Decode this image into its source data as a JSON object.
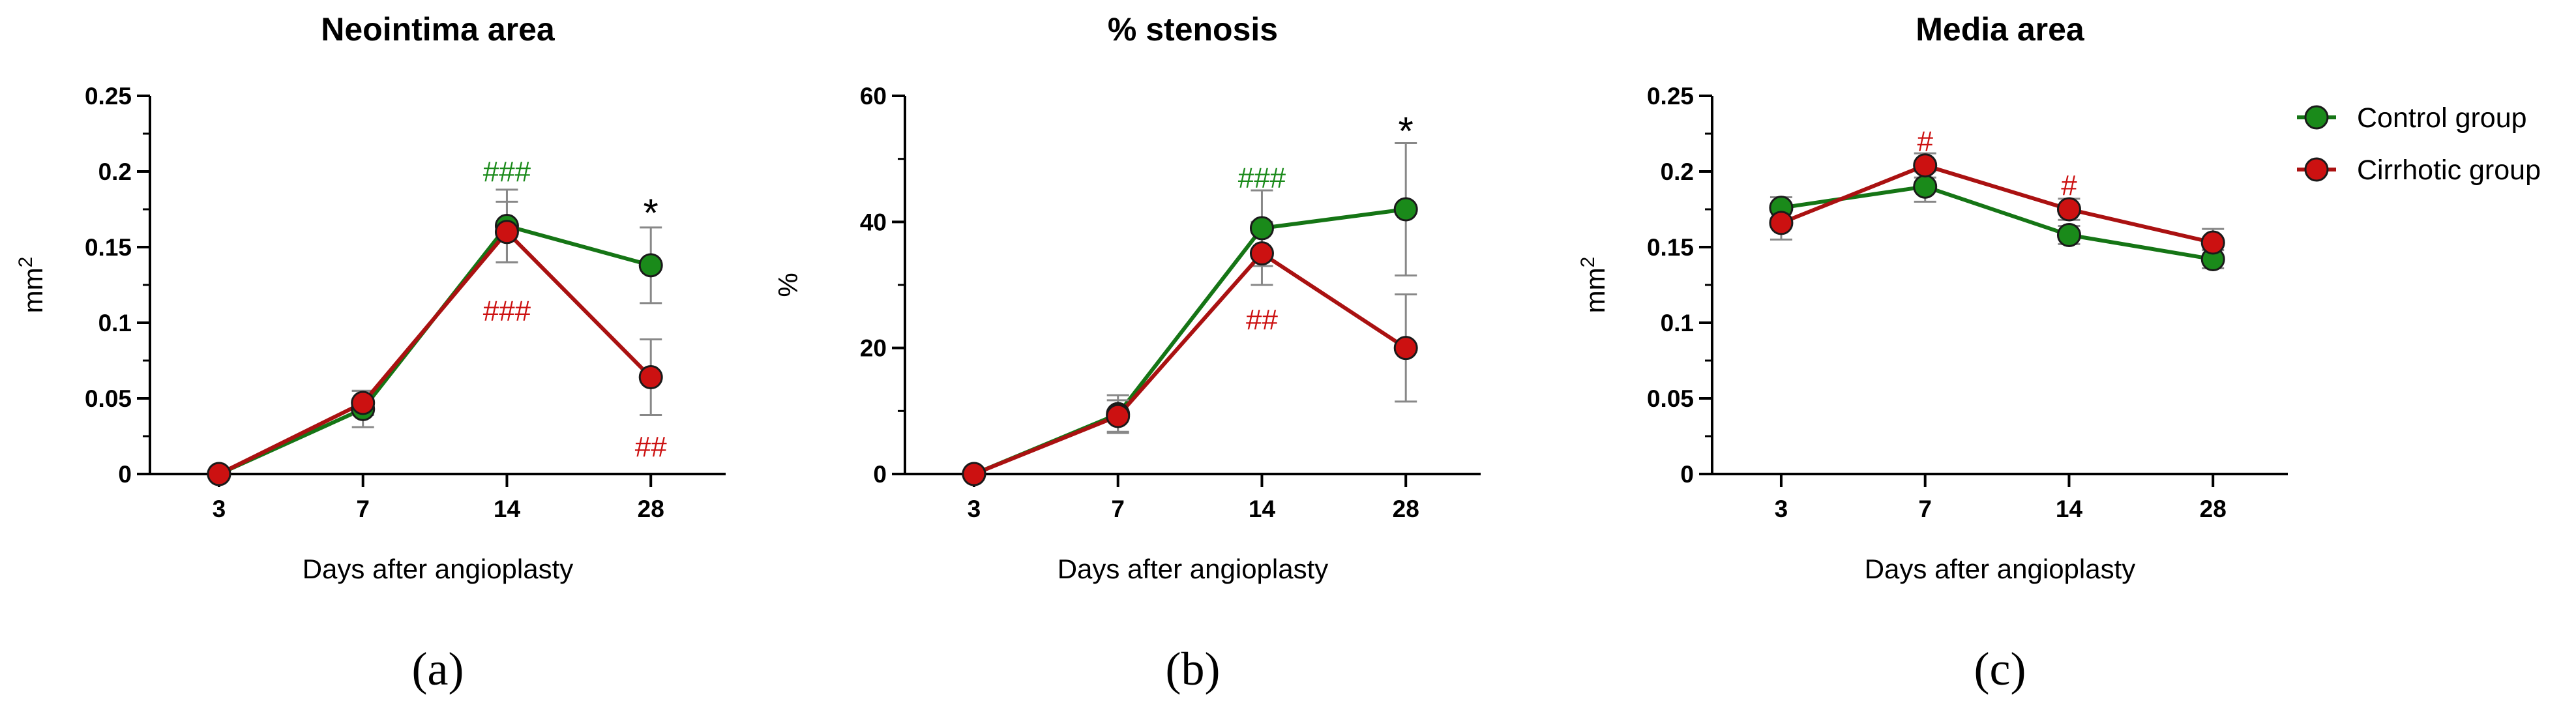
{
  "colors": {
    "control": "#1a8a1a",
    "cirrhotic": "#cc1111",
    "control_line": "#157515",
    "cirrhotic_line": "#aa1111",
    "errorbar": "#888888",
    "axis": "#000000"
  },
  "legend": {
    "placement": "top-right",
    "items": [
      {
        "label": "Control group",
        "color_key": "control"
      },
      {
        "label": "Cirrhotic group",
        "color_key": "cirrhotic"
      }
    ]
  },
  "chart_data": [
    {
      "type": "line",
      "title": "Neointima area",
      "xlabel": "Days after angioplasty",
      "ylabel_main": "mm",
      "ylabel_sup": "2",
      "panel_label": "(a)",
      "categories": [
        "3",
        "7",
        "14",
        "28"
      ],
      "ylim": [
        0,
        0.25
      ],
      "yticks": [
        0,
        0.05,
        0.1,
        0.15,
        0.2,
        0.25
      ],
      "ytick_labels": [
        "0",
        "0.05",
        "0.1",
        "0.15",
        "0.2",
        "0.25"
      ],
      "series": [
        {
          "name": "Control group",
          "color_key": "control",
          "values": [
            0,
            0.043,
            0.164,
            0.138
          ],
          "err": [
            0,
            0.012,
            0.024,
            0.025
          ]
        },
        {
          "name": "Cirrhotic group",
          "color_key": "cirrhotic",
          "values": [
            0,
            0.047,
            0.16,
            0.064
          ],
          "err": [
            0,
            0.008,
            0.02,
            0.025
          ]
        }
      ],
      "annotations": [
        {
          "text": "###",
          "category": "14",
          "y": 0.2,
          "color_key": "control"
        },
        {
          "text": "###",
          "category": "14",
          "y": 0.108,
          "color_key": "cirrhotic"
        },
        {
          "text": "*",
          "category": "28",
          "y": 0.175,
          "color_key": "axis"
        },
        {
          "text": "##",
          "category": "28",
          "y": 0.018,
          "color_key": "cirrhotic"
        }
      ]
    },
    {
      "type": "line",
      "title": "% stenosis",
      "xlabel": "Days after angioplasty",
      "ylabel_main": "%",
      "ylabel_sup": "",
      "panel_label": "(b)",
      "categories": [
        "3",
        "7",
        "14",
        "28"
      ],
      "ylim": [
        0,
        60
      ],
      "yticks": [
        0,
        20,
        40,
        60
      ],
      "ytick_labels": [
        "0",
        "20",
        "40",
        "60"
      ],
      "series": [
        {
          "name": "Control group",
          "color_key": "control",
          "values": [
            0,
            9.5,
            39,
            42
          ],
          "err": [
            0,
            3,
            6,
            10.5
          ]
        },
        {
          "name": "Cirrhotic group",
          "color_key": "cirrhotic",
          "values": [
            0,
            9.2,
            35,
            20
          ],
          "err": [
            0,
            2.5,
            5,
            8.5
          ]
        }
      ],
      "annotations": [
        {
          "text": "###",
          "category": "14",
          "y": 47,
          "color_key": "control"
        },
        {
          "text": "##",
          "category": "14",
          "y": 24.5,
          "color_key": "cirrhotic"
        },
        {
          "text": "*",
          "category": "28",
          "y": 55,
          "color_key": "axis"
        }
      ]
    },
    {
      "type": "line",
      "title": "Media area",
      "xlabel": "Days after angioplasty",
      "ylabel_main": "mm",
      "ylabel_sup": "2",
      "panel_label": "(c)",
      "categories": [
        "3",
        "7",
        "14",
        "28"
      ],
      "ylim": [
        0,
        0.25
      ],
      "yticks": [
        0,
        0.05,
        0.1,
        0.15,
        0.2,
        0.25
      ],
      "ytick_labels": [
        "0",
        "0.05",
        "0.1",
        "0.15",
        "0.2",
        "0.25"
      ],
      "series": [
        {
          "name": "Control group",
          "color_key": "control",
          "values": [
            0.176,
            0.19,
            0.158,
            0.142
          ],
          "err": [
            0.007,
            0.01,
            0.006,
            0.006
          ]
        },
        {
          "name": "Cirrhotic group",
          "color_key": "cirrhotic",
          "values": [
            0.166,
            0.204,
            0.175,
            0.153
          ],
          "err": [
            0.011,
            0.008,
            0.007,
            0.009
          ]
        }
      ],
      "annotations": [
        {
          "text": "#",
          "category": "7",
          "y": 0.22,
          "color_key": "cirrhotic"
        },
        {
          "text": "#",
          "category": "14",
          "y": 0.191,
          "color_key": "cirrhotic"
        }
      ]
    }
  ]
}
